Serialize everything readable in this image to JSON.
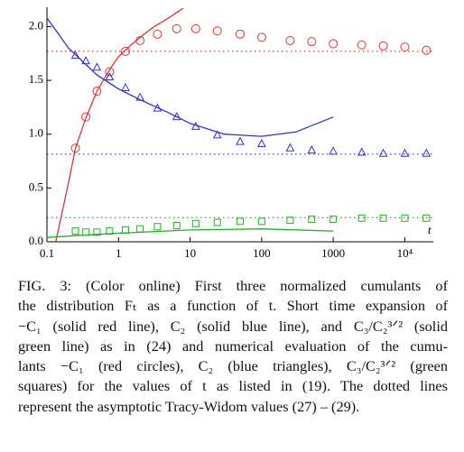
{
  "chart_data": {
    "type": "scatter",
    "xlabel": "t",
    "xscale": "log",
    "xlim": [
      0.1,
      25000
    ],
    "ylim": [
      0,
      2.18
    ],
    "xticks": [
      0.1,
      1,
      10,
      100,
      1000,
      {
        "value": 10000,
        "label": "10⁴"
      }
    ],
    "yticks": [
      {
        "value": 0,
        "label": "0.0"
      },
      0.5,
      {
        "value": 1,
        "label": "1.0"
      },
      1.5,
      {
        "value": 2,
        "label": "2.0"
      }
    ],
    "hlines": [
      {
        "value": 1.77,
        "color": "#e03030"
      },
      {
        "value": 0.815,
        "color": "#3030d0"
      },
      {
        "value": 0.224,
        "color": "#20b020"
      }
    ],
    "series": [
      {
        "color": "#e03030",
        "marker": "circle",
        "x": [
          0.25,
          0.35,
          0.5,
          0.75,
          1.25,
          2,
          3.5,
          6.5,
          12,
          24,
          50,
          100,
          250,
          500,
          1000,
          2500,
          5000,
          10000,
          20000
        ],
        "values": [
          0.87,
          1.16,
          1.4,
          1.58,
          1.77,
          1.87,
          1.93,
          1.98,
          1.98,
          1.96,
          1.93,
          1.9,
          1.87,
          1.86,
          1.84,
          1.83,
          1.82,
          1.81,
          1.78
        ]
      },
      {
        "color": "#3030d0",
        "marker": "triangle",
        "x": [
          0.25,
          0.35,
          0.5,
          0.75,
          1.25,
          2,
          3.5,
          6.5,
          12,
          24,
          50,
          100,
          250,
          500,
          1000,
          2500,
          5000,
          10000,
          20000
        ],
        "values": [
          1.73,
          1.68,
          1.62,
          1.53,
          1.43,
          1.34,
          1.24,
          1.16,
          1.07,
          0.99,
          0.93,
          0.91,
          0.87,
          0.85,
          0.84,
          0.83,
          0.82,
          0.82,
          0.82
        ]
      },
      {
        "color": "#20b020",
        "marker": "square",
        "x": [
          0.25,
          0.35,
          0.5,
          0.75,
          1.25,
          2,
          3.5,
          6.5,
          12,
          24,
          50,
          100,
          250,
          500,
          1000,
          2500,
          5000,
          10000,
          20000
        ],
        "values": [
          0.1,
          0.09,
          0.09,
          0.1,
          0.11,
          0.12,
          0.14,
          0.15,
          0.17,
          0.18,
          0.19,
          0.19,
          0.2,
          0.21,
          0.21,
          0.22,
          0.22,
          0.22,
          0.22
        ]
      },
      {
        "color": "#e03030",
        "marker": "line",
        "x": [
          0.133,
          0.2,
          0.25,
          0.35,
          0.5,
          0.75,
          1,
          1.5,
          2,
          3,
          5,
          8
        ],
        "values": [
          0,
          0.55,
          0.87,
          1.15,
          1.4,
          1.6,
          1.72,
          1.83,
          1.9,
          1.99,
          2.08,
          2.17
        ]
      },
      {
        "color": "#3030d0",
        "marker": "line",
        "x": [
          0.1,
          0.2,
          0.5,
          1,
          2,
          5,
          10,
          30,
          100,
          300,
          1000
        ],
        "values": [
          2.08,
          1.8,
          1.55,
          1.42,
          1.32,
          1.2,
          1.1,
          1.0,
          0.98,
          1.02,
          1.16
        ]
      },
      {
        "color": "#20b020",
        "marker": "line",
        "x": [
          0.1,
          0.3,
          1,
          10,
          100,
          1000
        ],
        "values": [
          0.04,
          0.06,
          0.08,
          0.11,
          0.12,
          0.1
        ]
      }
    ]
  },
  "caption": {
    "lines": [
      "FIG. 3: (Color online) First three normalized cumulants of",
      "the distribution Fₜ as a function of t. Short time expansion of",
      "−C₁ (solid red line), C₂ (solid blue line), and C₃/C₂³ᐟ² (solid",
      "green line) as in (24) and numerical evaluation of the cumu-",
      "lants −C₁ (red circles), C₂ (blue triangles), C₃/C₂³ᐟ² (green",
      "squares) for the values of t as listed in (19). The dotted lines",
      "represent the asymptotic Tracy-Widom values (27) – (29)."
    ]
  }
}
